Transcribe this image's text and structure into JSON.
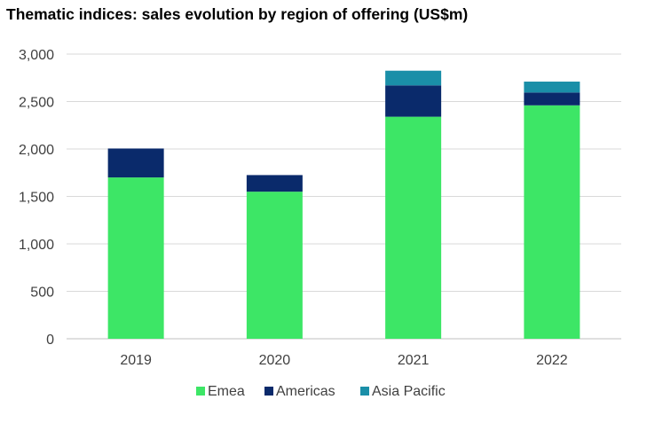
{
  "chart_data": {
    "type": "bar",
    "stacked": true,
    "title": "Thematic indices: sales evolution by region of offering (US$m)",
    "xlabel": "",
    "ylabel": "",
    "categories": [
      "2019",
      "2020",
      "2021",
      "2022"
    ],
    "series": [
      {
        "name": "Emea",
        "color": "#3de666",
        "values": [
          1700,
          1550,
          2340,
          2460
        ]
      },
      {
        "name": "Americas",
        "color": "#0a2a6b",
        "values": [
          305,
          175,
          330,
          135
        ]
      },
      {
        "name": "Asia Pacific",
        "color": "#1a8fa8",
        "values": [
          0,
          0,
          155,
          115
        ]
      }
    ],
    "ylim": [
      0,
      3000
    ],
    "yticks": [
      0,
      500,
      1000,
      1500,
      2000,
      2500,
      3000
    ],
    "ytick_labels": [
      "0",
      "500",
      "1,000",
      "1,500",
      "2,000",
      "2,500",
      "3,000"
    ],
    "grid": true,
    "legend_position": "bottom"
  }
}
